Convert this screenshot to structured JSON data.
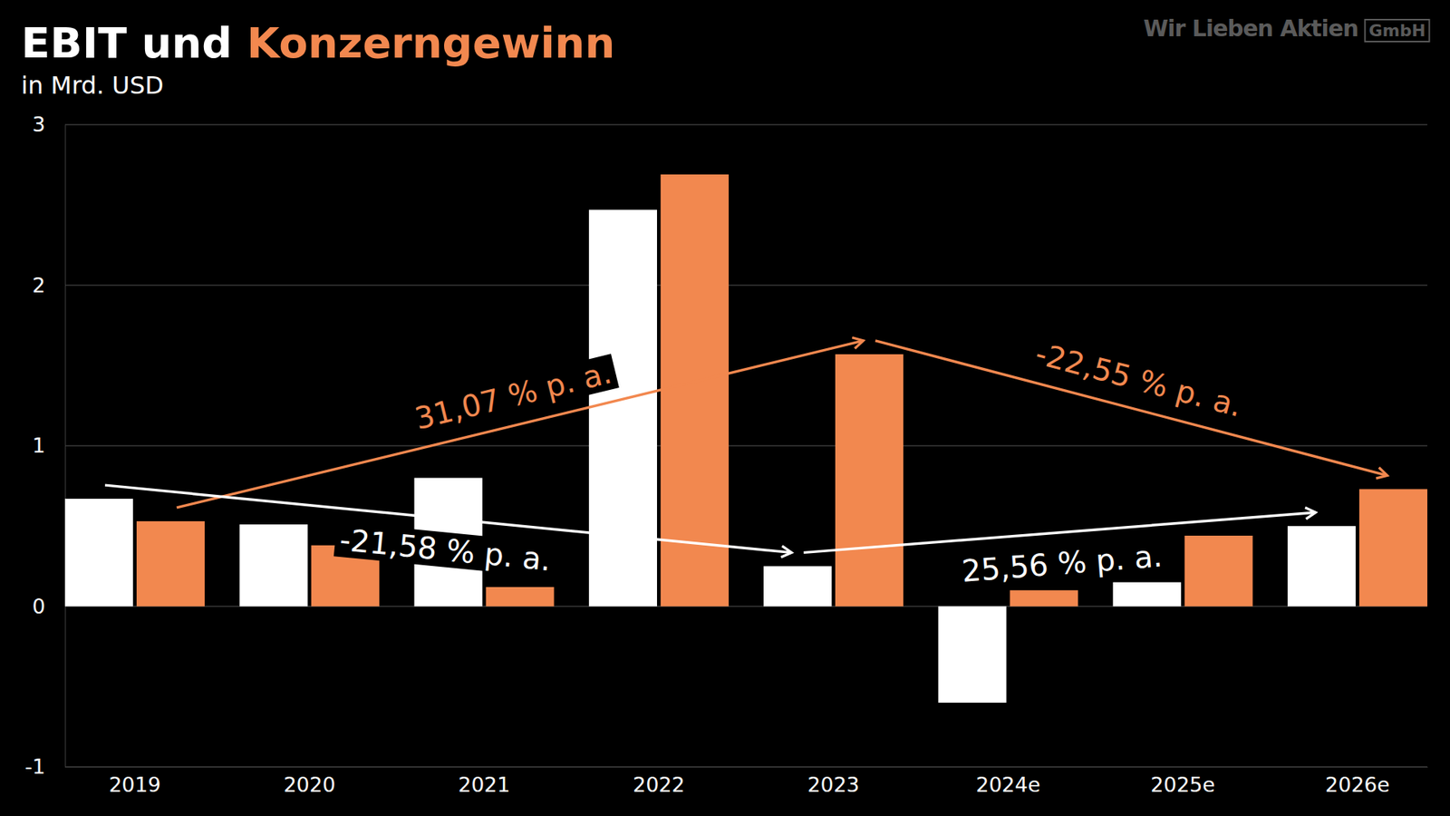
{
  "chart_data": {
    "type": "bar",
    "title": "EBIT und Konzerngewinn",
    "subtitle": "in Mrd. USD",
    "watermark": "Wir Lieben Aktien",
    "watermark_badge": "GmbH",
    "categories": [
      "2019",
      "2020",
      "2021",
      "2022",
      "2023",
      "2024e",
      "2025e",
      "2026e"
    ],
    "series": [
      {
        "name": "EBIT",
        "color": "#ffffff",
        "values": [
          0.67,
          0.51,
          0.8,
          2.47,
          0.25,
          -0.6,
          0.15,
          0.5
        ]
      },
      {
        "name": "Konzerngewinn",
        "color": "#f2884f",
        "values": [
          0.53,
          0.38,
          0.12,
          2.69,
          1.57,
          0.1,
          0.44,
          0.73
        ]
      }
    ],
    "ylim": [
      -1,
      3
    ],
    "yticks": [
      -1,
      0,
      1,
      2,
      3
    ],
    "grid": true,
    "annotations": [
      {
        "text": "31,07 % p. a.",
        "series": "Konzerngewinn",
        "from": "2019",
        "to": "2023"
      },
      {
        "text": "-22,55 % p. a.",
        "series": "Konzerngewinn",
        "from": "2023",
        "to": "2026e"
      },
      {
        "text": "-21,58 % p. a.",
        "series": "EBIT",
        "from": "2019",
        "to": "2023"
      },
      {
        "text": "25,56 % p. a.",
        "series": "EBIT",
        "from": "2023",
        "to": "2026e"
      }
    ]
  }
}
